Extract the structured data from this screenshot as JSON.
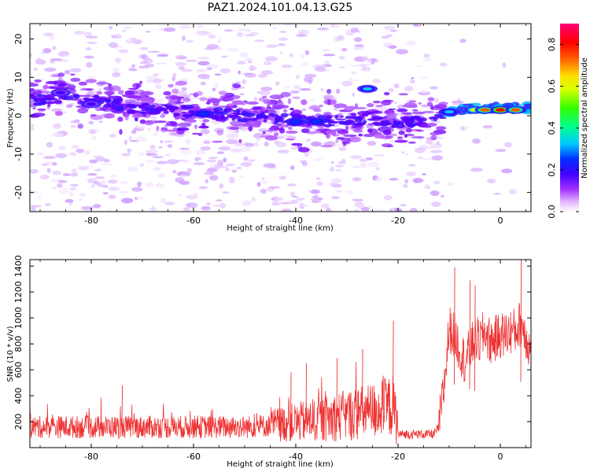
{
  "title": "PAZ1.2024.101.04.13.G25",
  "chart_data": [
    {
      "type": "heatmap",
      "xlabel": "Height of straight line (km)",
      "ylabel": "Frequency (Hz)",
      "xlim": [
        -92,
        6
      ],
      "ylim": [
        -25,
        24
      ],
      "xticks": [
        -80,
        -60,
        -40,
        -20,
        0
      ],
      "yticks": [
        -20,
        -10,
        0,
        10,
        20
      ],
      "colorbar": {
        "label": "Normalized spectral amplitude",
        "range": [
          0,
          0.9
        ],
        "ticks": [
          0.0,
          0.2,
          0.4,
          0.6,
          0.8
        ],
        "colormap": "rainbow (white → violet → blue → cyan → green → yellow → orange → red → magenta)"
      },
      "main_ridge": {
        "x": [
          -92,
          -85,
          -80,
          -75,
          -70,
          -65,
          -60,
          -55,
          -50,
          -45,
          -40,
          -35,
          -30,
          -25,
          -20,
          -15,
          -12,
          -10,
          -5,
          0,
          5
        ],
        "y": [
          4,
          5,
          4,
          3,
          2,
          1.5,
          1,
          0.5,
          0,
          -0.5,
          -1,
          -1.5,
          -1.5,
          -1,
          -2,
          -1,
          0,
          1,
          2,
          2,
          2
        ]
      },
      "hotspots": [
        {
          "x": -10,
          "y": 1,
          "value": 0.3
        },
        {
          "x": -5,
          "y": 1.5,
          "value": 0.55
        },
        {
          "x": -3,
          "y": 1.5,
          "value": 0.7
        },
        {
          "x": 0,
          "y": 1.5,
          "value": 0.75
        },
        {
          "x": 3,
          "y": 1.5,
          "value": 0.7
        },
        {
          "x": -26,
          "y": 7,
          "value": 0.3
        },
        {
          "x": -40,
          "y": -1.5,
          "value": 0.25
        },
        {
          "x": -36,
          "y": -1.5,
          "value": 0.22
        },
        {
          "x": -58,
          "y": 0.5,
          "value": 0.2
        },
        {
          "x": -80,
          "y": 3,
          "value": 0.18
        },
        {
          "x": -86,
          "y": 6,
          "value": 0.18
        }
      ]
    },
    {
      "type": "line",
      "xlabel": "Height of straight line (km)",
      "ylabel": "SNR (10 * v/v)",
      "xlim": [
        -92,
        6
      ],
      "ylim": [
        0,
        1450
      ],
      "xticks": [
        -80,
        -60,
        -40,
        -20,
        0
      ],
      "yticks": [
        200,
        400,
        600,
        800,
        1000,
        1200,
        1400
      ],
      "color": "#ee3333",
      "series": [
        {
          "x": [
            -92,
            -85,
            -80,
            -75,
            -70,
            -65,
            -60,
            -55,
            -50,
            -45,
            -40,
            -35,
            -30,
            -25,
            -22,
            -21,
            -20,
            -18,
            -15,
            -13,
            -12,
            -11,
            -10,
            -9,
            -8,
            -7,
            -6,
            -5,
            -4,
            -3,
            -2,
            -1,
            0,
            1,
            2,
            3,
            4,
            5,
            6
          ],
          "values": [
            150,
            150,
            150,
            150,
            150,
            150,
            150,
            150,
            150,
            160,
            180,
            200,
            230,
            260,
            290,
            300,
            100,
            100,
            100,
            100,
            150,
            450,
            900,
            850,
            750,
            650,
            720,
            820,
            800,
            880,
            800,
            820,
            850,
            850,
            880,
            880,
            950,
            850,
            700
          ],
          "spikes": [
            {
              "x": -74,
              "y": 480
            },
            {
              "x": -41,
              "y": 580
            },
            {
              "x": -38,
              "y": 650
            },
            {
              "x": -32,
              "y": 690
            },
            {
              "x": -27,
              "y": 760
            },
            {
              "x": -21,
              "y": 980
            },
            {
              "x": -9,
              "y": 1390
            },
            {
              "x": -6,
              "y": 1290
            },
            {
              "x": -5,
              "y": 1250
            },
            {
              "x": 4,
              "y": 1450
            }
          ]
        }
      ]
    }
  ]
}
